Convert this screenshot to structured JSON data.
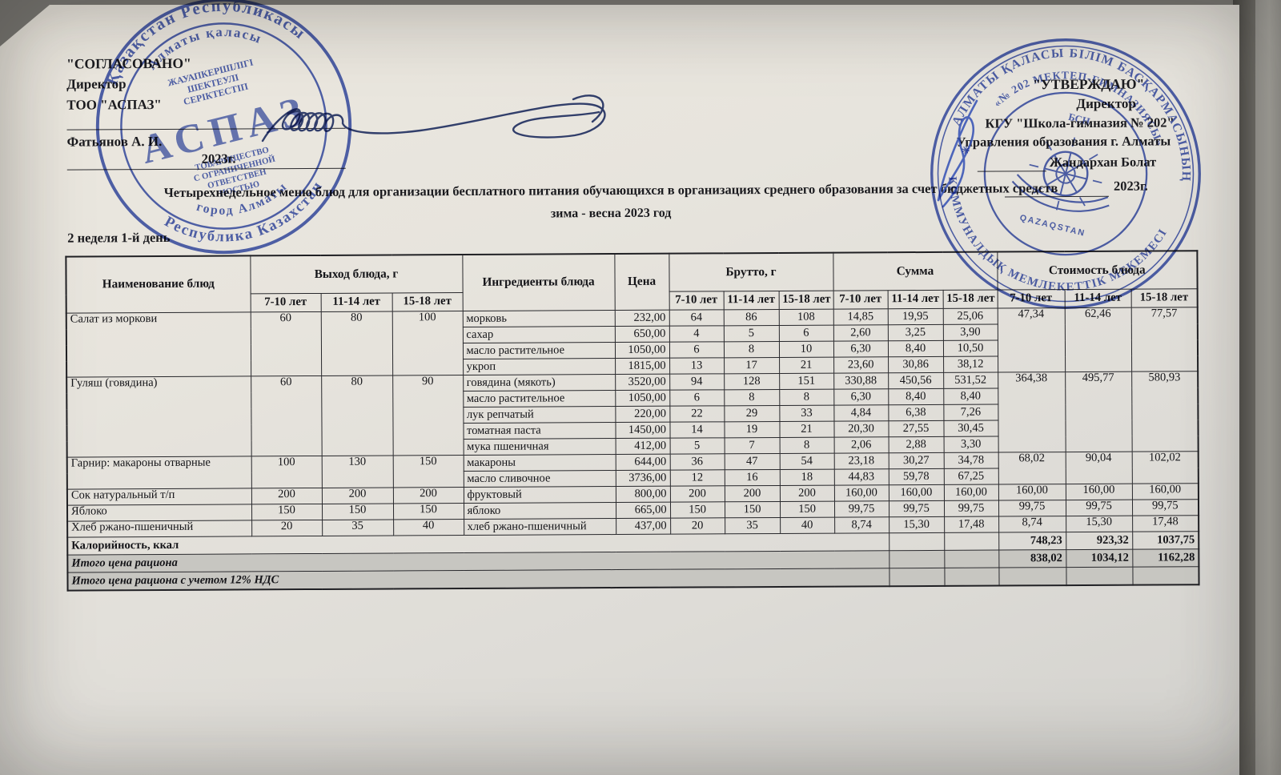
{
  "colors": {
    "stamp_blue": "#2e47ae",
    "ink": "#1b1b1f",
    "paper": "#e7e4dd",
    "summary_gray": "#c7c6c1"
  },
  "approval_left": {
    "line1": "\"СОГЛАСОВАНО\"",
    "line2": "Директор",
    "line3": "ТОО \"АСПАЗ\"",
    "signatory": "Фатьянов А. И.",
    "year": "2023г."
  },
  "approval_right": {
    "line1": "\"УТВЕРЖДАЮ\"",
    "line2": "Директор",
    "line3": "КГУ \"Школа-гимназия № 202\"",
    "line4": "Управления образования г. Алматы",
    "signatory": "Жандархан Болат",
    "year": "2023г."
  },
  "header": {
    "title": "Четырехнедельное меню блюд для организации бесплатного питания обучающихся в организациях среднего образования за счет бюджетных средств",
    "season": "зима - весна 2023 год",
    "week_label": "2 неделя 1-й день"
  },
  "stamps": {
    "left": {
      "outer_top": "Қазақстан Республикасы",
      "inner_top": "Алматы қаласы",
      "banner1": "ЖАУАПКЕРШІЛІГІ",
      "banner2": "ШЕКТЕУЛІ",
      "banner3": "СЕРІКТЕСТІП",
      "name": "АСПАЗ",
      "banner4": "ТОВАРИЩЕСТВО",
      "banner5": "С ОГРАНИЧЕННОЙ",
      "banner6": "ОТВЕТСТВЕН",
      "banner7": "НОСТЬЮ",
      "inner_bottom": "город Алматы",
      "outer_bottom": "Республика Казахстан"
    },
    "right": {
      "outer_top": "АЛМАТЫ ҚАЛАСЫ БІЛІМ БАСҚАРМАСЫНЫҢ",
      "inner_top": "«№ 202 МЕКТЕП-ГИМНАЗИЯСЫ»",
      "bsn": "БСН",
      "outer_bottom": "КОММУНАЛДЫҚ МЕМЛЕКЕТТІК МЕКЕМЕСІ",
      "star": "✳",
      "emblem_label": "QAZAQSTAN"
    }
  },
  "table": {
    "headers": {
      "name": "Наименование блюд",
      "output": "Выход блюда, г",
      "ingredients": "Ингредиенты блюда",
      "price": "Цена",
      "brutto": "Брутто, г",
      "sum": "Сумма",
      "cost": "Стоимость блюда",
      "age_groups": [
        "7-10 лет",
        "11-14 лет",
        "15-18 лет"
      ]
    },
    "dishes": [
      {
        "name": "Салат из моркови",
        "output": [
          "60",
          "80",
          "100"
        ],
        "cost": [
          "47,34",
          "62,46",
          "77,57"
        ],
        "ingredients": [
          {
            "name": "морковь",
            "price": "232,00",
            "brutto": [
              "64",
              "86",
              "108"
            ],
            "sum": [
              "14,85",
              "19,95",
              "25,06"
            ]
          },
          {
            "name": "сахар",
            "price": "650,00",
            "brutto": [
              "4",
              "5",
              "6"
            ],
            "sum": [
              "2,60",
              "3,25",
              "3,90"
            ]
          },
          {
            "name": "масло растительное",
            "price": "1050,00",
            "brutto": [
              "6",
              "8",
              "10"
            ],
            "sum": [
              "6,30",
              "8,40",
              "10,50"
            ]
          },
          {
            "name": "укроп",
            "price": "1815,00",
            "brutto": [
              "13",
              "17",
              "21"
            ],
            "sum": [
              "23,60",
              "30,86",
              "38,12"
            ]
          }
        ]
      },
      {
        "name": "Гуляш (говядина)",
        "output": [
          "60",
          "80",
          "90"
        ],
        "cost": [
          "364,38",
          "495,77",
          "580,93"
        ],
        "ingredients": [
          {
            "name": "говядина (мякоть)",
            "price": "3520,00",
            "brutto": [
              "94",
              "128",
              "151"
            ],
            "sum": [
              "330,88",
              "450,56",
              "531,52"
            ]
          },
          {
            "name": "масло растительное",
            "price": "1050,00",
            "brutto": [
              "6",
              "8",
              "8"
            ],
            "sum": [
              "6,30",
              "8,40",
              "8,40"
            ]
          },
          {
            "name": "лук репчатый",
            "price": "220,00",
            "brutto": [
              "22",
              "29",
              "33"
            ],
            "sum": [
              "4,84",
              "6,38",
              "7,26"
            ]
          },
          {
            "name": "томатная паста",
            "price": "1450,00",
            "brutto": [
              "14",
              "19",
              "21"
            ],
            "sum": [
              "20,30",
              "27,55",
              "30,45"
            ]
          },
          {
            "name": "мука пшеничная",
            "price": "412,00",
            "brutto": [
              "5",
              "7",
              "8"
            ],
            "sum": [
              "2,06",
              "2,88",
              "3,30"
            ]
          }
        ]
      },
      {
        "name": "Гарнир: макароны отварные",
        "output": [
          "100",
          "130",
          "150"
        ],
        "cost": [
          "68,02",
          "90,04",
          "102,02"
        ],
        "ingredients": [
          {
            "name": "макароны",
            "price": "644,00",
            "brutto": [
              "36",
              "47",
              "54"
            ],
            "sum": [
              "23,18",
              "30,27",
              "34,78"
            ]
          },
          {
            "name": "масло сливочное",
            "price": "3736,00",
            "brutto": [
              "12",
              "16",
              "18"
            ],
            "sum": [
              "44,83",
              "59,78",
              "67,25"
            ]
          }
        ]
      },
      {
        "name": "Сок натуральный т/п",
        "output": [
          "200",
          "200",
          "200"
        ],
        "cost": [
          "160,00",
          "160,00",
          "160,00"
        ],
        "ingredients": [
          {
            "name": "фруктовый",
            "price": "800,00",
            "brutto": [
              "200",
              "200",
              "200"
            ],
            "sum": [
              "160,00",
              "160,00",
              "160,00"
            ]
          }
        ]
      },
      {
        "name": "Яблоко",
        "output": [
          "150",
          "150",
          "150"
        ],
        "cost": [
          "99,75",
          "99,75",
          "99,75"
        ],
        "ingredients": [
          {
            "name": "яблоко",
            "price": "665,00",
            "brutto": [
              "150",
              "150",
              "150"
            ],
            "sum": [
              "99,75",
              "99,75",
              "99,75"
            ]
          }
        ]
      },
      {
        "name": "Хлеб ржано-пшеничный",
        "output": [
          "20",
          "35",
          "40"
        ],
        "cost": [
          "8,74",
          "15,30",
          "17,48"
        ],
        "ingredients": [
          {
            "name": "хлеб ржано-пшеничный",
            "price": "437,00",
            "brutto": [
              "20",
              "35",
              "40"
            ],
            "sum": [
              "8,74",
              "15,30",
              "17,48"
            ]
          }
        ]
      }
    ],
    "summary": [
      {
        "label": "Калорийность, ккал",
        "values": [
          "748,23",
          "923,32",
          "1037,75"
        ]
      },
      {
        "label": "Итого цена рациона",
        "values": [
          "838,02",
          "1034,12",
          "1162,28"
        ]
      },
      {
        "label": "Итого цена рациона с учетом 12% НДС",
        "values": [
          "",
          "",
          ""
        ]
      }
    ]
  }
}
